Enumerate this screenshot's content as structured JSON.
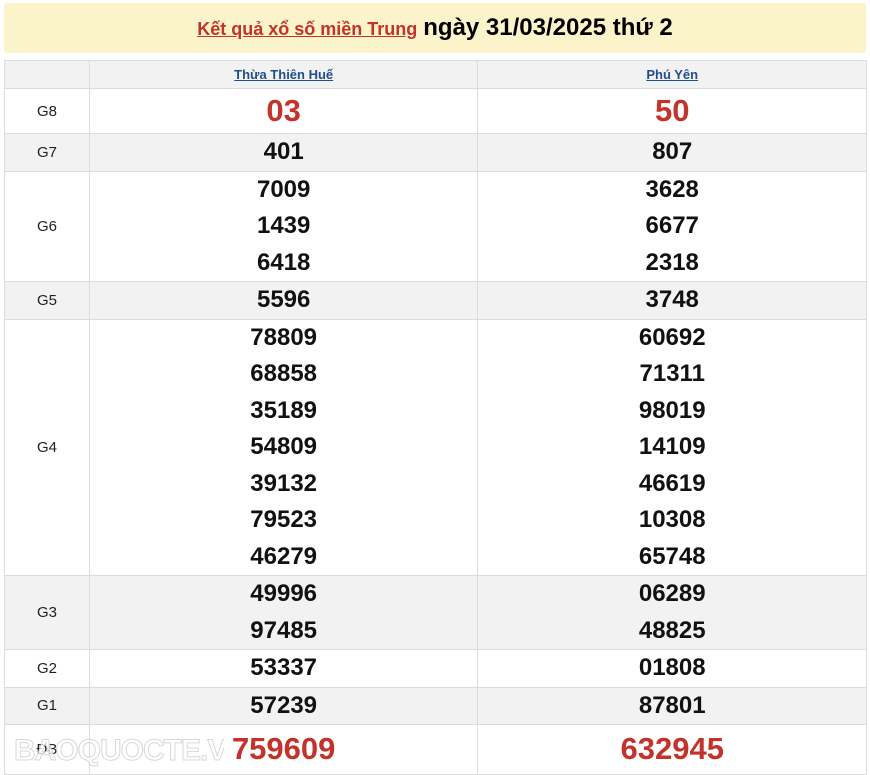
{
  "header": {
    "link": "Kết quả xổ số miền Trung",
    "date": "ngày 31/03/2025 thứ 2"
  },
  "provinces": [
    "Thừa Thiên Huế",
    "Phú Yên"
  ],
  "prizes": [
    {
      "label": "G8",
      "a": [
        "03"
      ],
      "b": [
        "50"
      ],
      "red": true
    },
    {
      "label": "G7",
      "a": [
        "401"
      ],
      "b": [
        "807"
      ]
    },
    {
      "label": "G6",
      "a": [
        "7009",
        "1439",
        "6418"
      ],
      "b": [
        "3628",
        "6677",
        "2318"
      ]
    },
    {
      "label": "G5",
      "a": [
        "5596"
      ],
      "b": [
        "3748"
      ]
    },
    {
      "label": "G4",
      "a": [
        "78809",
        "68858",
        "35189",
        "54809",
        "39132",
        "79523",
        "46279"
      ],
      "b": [
        "60692",
        "71311",
        "98019",
        "14109",
        "46619",
        "10308",
        "65748"
      ]
    },
    {
      "label": "G3",
      "a": [
        "49996",
        "97485"
      ],
      "b": [
        "06289",
        "48825"
      ]
    },
    {
      "label": "G2",
      "a": [
        "53337"
      ],
      "b": [
        "01808"
      ]
    },
    {
      "label": "G1",
      "a": [
        "57239"
      ],
      "b": [
        "87801"
      ]
    },
    {
      "label": "ĐB",
      "a": [
        "759609"
      ],
      "b": [
        "632945"
      ],
      "red": true
    }
  ],
  "watermark": "BAOQUOCTE.VN"
}
